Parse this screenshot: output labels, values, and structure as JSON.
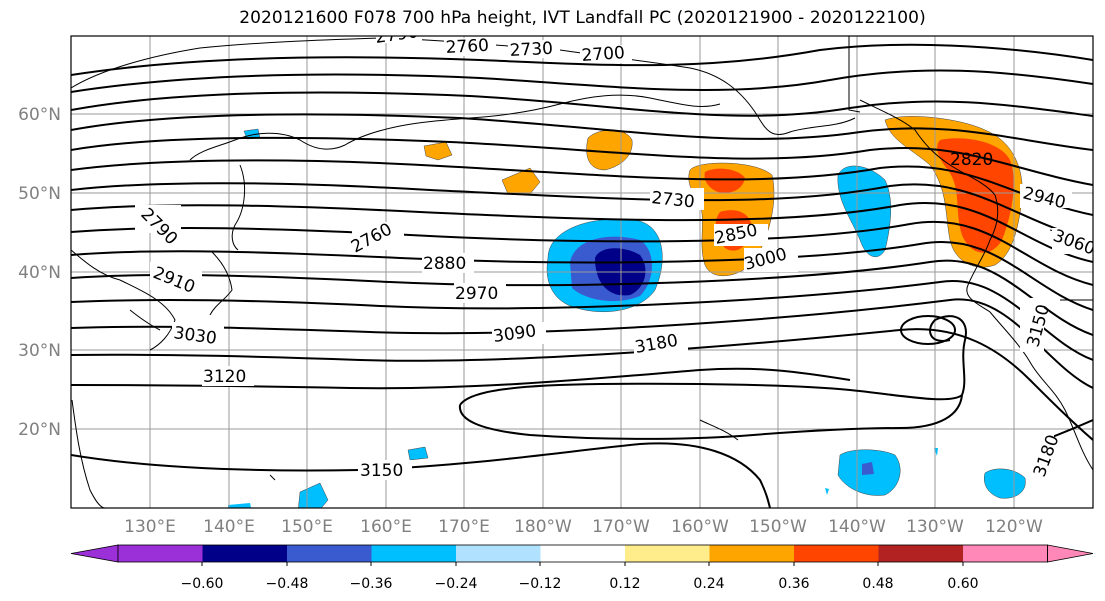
{
  "title": "2020121600 F078 700 hPa height, IVT Landfall PC (2020121900 - 2020122100)",
  "map": {
    "lat_labels": [
      "60°N",
      "50°N",
      "40°N",
      "30°N",
      "20°N"
    ],
    "lon_labels": [
      "130°E",
      "140°E",
      "150°E",
      "160°E",
      "170°E",
      "180°W",
      "170°W",
      "160°W",
      "150°W",
      "140°W",
      "130°W",
      "120°W"
    ],
    "contour_labels": [
      "2790",
      "2760",
      "2730",
      "2700",
      "2910",
      "3030",
      "3120",
      "3150",
      "2760",
      "2880",
      "2970",
      "3090",
      "2730",
      "2850",
      "3000",
      "3180",
      "2820",
      "2940",
      "3060",
      "3150",
      "3180"
    ]
  },
  "colorbar": {
    "ticks": [
      "−0.60",
      "−0.48",
      "−0.36",
      "−0.24",
      "−0.12",
      "0.12",
      "0.24",
      "0.36",
      "0.48",
      "0.60"
    ],
    "colors": [
      "#9b30d9",
      "#000088",
      "#3a5bd0",
      "#00bfff",
      "#b0e2ff",
      "#ffffff",
      "#ffec8b",
      "#ffa500",
      "#ff4500",
      "#b22222",
      "#ff88b8",
      "#ff88b8"
    ]
  }
}
